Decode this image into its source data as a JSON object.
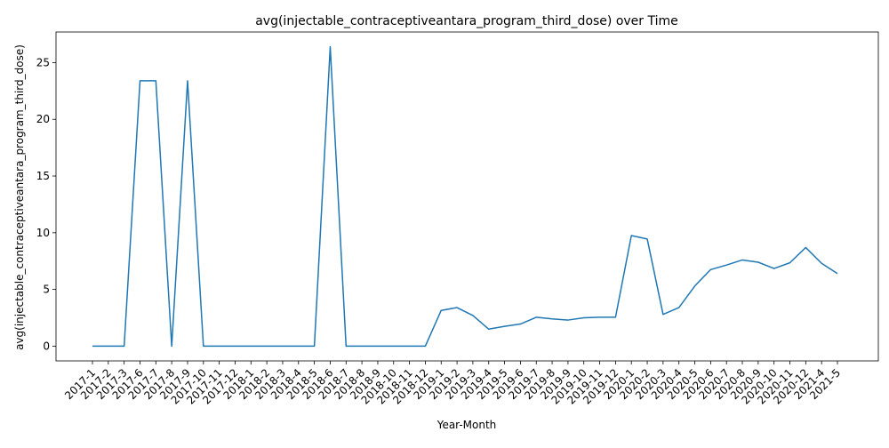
{
  "chart_data": {
    "type": "line",
    "title": "avg(injectable_contraceptiveantara_program_third_dose) over Time",
    "xlabel": "Year-Month",
    "ylabel": "avg(injectable_contraceptiveantara_program_third_dose)",
    "ylim": [
      -1.3,
      27.7
    ],
    "yticks": [
      0,
      5,
      10,
      15,
      20,
      25
    ],
    "grid": false,
    "legend": "none",
    "line_color": "#1f77b4",
    "x": [
      "2017-1",
      "2017-2",
      "2017-3",
      "2017-6",
      "2017-7",
      "2017-8",
      "2017-9",
      "2017-10",
      "2017-11",
      "2017-12",
      "2018-1",
      "2018-2",
      "2018-3",
      "2018-4",
      "2018-5",
      "2018-6",
      "2018-7",
      "2018-8",
      "2018-9",
      "2018-10",
      "2018-11",
      "2018-12",
      "2019-1",
      "2019-2",
      "2019-3",
      "2019-4",
      "2019-5",
      "2019-6",
      "2019-7",
      "2019-8",
      "2019-9",
      "2019-10",
      "2019-11",
      "2019-12",
      "2020-1",
      "2020-2",
      "2020-3",
      "2020-4",
      "2020-5",
      "2020-6",
      "2020-7",
      "2020-8",
      "2020-9",
      "2020-10",
      "2020-11",
      "2020-12",
      "2021-4",
      "2021-5"
    ],
    "values": [
      0,
      0,
      0,
      23.4,
      23.4,
      0,
      23.4,
      0,
      0,
      0,
      0,
      0,
      0,
      0,
      0,
      26.4,
      0,
      0,
      0,
      0,
      0,
      0,
      3.15,
      3.4,
      2.7,
      1.5,
      1.75,
      1.95,
      2.55,
      2.4,
      2.3,
      2.5,
      2.55,
      2.55,
      9.75,
      9.45,
      2.8,
      3.4,
      5.3,
      6.75,
      7.15,
      7.6,
      7.4,
      6.85,
      7.35,
      8.7,
      7.3,
      6.4
    ]
  }
}
